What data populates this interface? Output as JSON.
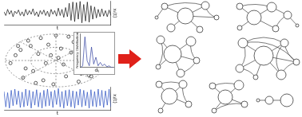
{
  "chart_data": [
    {
      "type": "line",
      "color": "#111111",
      "x_label": "t",
      "y_label": "xᵢ(t)",
      "tick_labels": false,
      "x": [
        1,
        2,
        3,
        4,
        5,
        6,
        7,
        8,
        9,
        10,
        11,
        12,
        13,
        14,
        15,
        16,
        17,
        18,
        19,
        20,
        21,
        22,
        23,
        24,
        25,
        26,
        27,
        28,
        29,
        30,
        31,
        32,
        33,
        34,
        35,
        36,
        37,
        38,
        39,
        40,
        41,
        42,
        43,
        44,
        45,
        46,
        47,
        48,
        49,
        50,
        51,
        52,
        53,
        54,
        55,
        56,
        57,
        58,
        59,
        60
      ],
      "values": [
        0.1,
        -0.2,
        0.3,
        -0.1,
        0.2,
        -0.3,
        0.15,
        -0.05,
        0.25,
        -0.2,
        0.1,
        -0.25,
        0.3,
        -0.15,
        0.2,
        -0.1,
        0.35,
        -0.2,
        0.1,
        -0.3,
        0.2,
        -0.1,
        0.25,
        -0.2,
        0.15,
        -0.3,
        0.3,
        -0.1,
        0.2,
        -0.25,
        0.4,
        -0.2,
        0.3,
        -0.35,
        0.45,
        -0.3,
        0.8,
        -0.6,
        0.9,
        -0.7,
        0.85,
        -0.5,
        0.95,
        -0.8,
        0.7,
        -0.65,
        0.9,
        -0.75,
        0.6,
        -0.5,
        0.5,
        -0.4,
        0.3,
        -0.3,
        0.35,
        -0.25,
        0.2,
        -0.3,
        0.25,
        -0.2
      ],
      "xlim": [
        1,
        60
      ],
      "ylim": [
        -1,
        1
      ]
    },
    {
      "type": "scatter",
      "color": "#333333",
      "marker": "open-circle",
      "grid": true,
      "tick_labels": false,
      "x": [
        0.05,
        -0.1,
        0.15,
        -0.2,
        0.3,
        -0.35,
        0.1,
        0.4,
        -0.45,
        0.55,
        -0.5,
        0.2,
        -0.6,
        0.65,
        -0.7,
        0.75,
        -0.25,
        0.35,
        -0.8,
        0.85,
        -0.05,
        0.45,
        -0.3,
        0.6,
        -0.65,
        0.9,
        -0.9,
        0.25,
        -0.15,
        0.7,
        -0.55,
        0.5,
        -0.4,
        0.8,
        0.0,
        -0.75
      ],
      "values": [
        0.1,
        0.2,
        -0.15,
        -0.1,
        0.3,
        0.25,
        0.45,
        -0.35,
        -0.4,
        0.2,
        0.55,
        -0.6,
        -0.3,
        -0.55,
        0.4,
        0.1,
        -0.75,
        0.7,
        0.2,
        -0.35,
        -0.9,
        -0.8,
        0.85,
        0.7,
        -0.65,
        0.05,
        -0.1,
        0.9,
        0.6,
        -0.6,
        0.75,
        -0.5,
        -0.85,
        0.5,
        0.95,
        0.55
      ],
      "xlim": [
        -1,
        1
      ],
      "ylim": [
        -1,
        1
      ],
      "xticks": [
        -1,
        -0.5,
        0,
        0.5,
        1
      ],
      "yticks": [
        -1,
        -0.5,
        0,
        0.5,
        1
      ]
    },
    {
      "type": "line",
      "color": "#2f3f9f",
      "x_label": "dᵢⱼ",
      "y_label": "Frequency Distribution",
      "tick_labels": false,
      "x": [
        0,
        0.02,
        0.04,
        0.06,
        0.08,
        0.1,
        0.12,
        0.14,
        0.16,
        0.18,
        0.2,
        0.22,
        0.24,
        0.26,
        0.28,
        0.3
      ],
      "values": [
        0,
        0.05,
        0.9,
        0.2,
        0.05,
        0.6,
        0.1,
        0.3,
        0.05,
        0.15,
        0.05,
        0.1,
        0.02,
        0.05,
        0,
        0
      ],
      "xlim": [
        0,
        0.3
      ],
      "ylim": [
        0,
        1
      ]
    },
    {
      "type": "line",
      "color": "#2a4fc0",
      "x_label": "t",
      "y_label": "xⱼ(t)",
      "tick_labels": false,
      "x": [
        1,
        2,
        3,
        4,
        5,
        6,
        7,
        8,
        9,
        10,
        11,
        12,
        13,
        14,
        15,
        16,
        17,
        18,
        19,
        20,
        21,
        22,
        23,
        24,
        25,
        26,
        27,
        28,
        29,
        30,
        31,
        32,
        33,
        34,
        35,
        36,
        37,
        38,
        39,
        40,
        41,
        42,
        43,
        44,
        45,
        46,
        47,
        48,
        49,
        50,
        51,
        52,
        53,
        54,
        55,
        56,
        57,
        58,
        59,
        60
      ],
      "values": [
        0.6,
        -0.7,
        0.5,
        -0.8,
        0.7,
        -0.6,
        0.8,
        -0.5,
        0.65,
        -0.75,
        0.55,
        -0.7,
        0.8,
        -0.6,
        0.7,
        -0.8,
        0.6,
        -0.55,
        0.75,
        -0.7,
        0.5,
        -0.8,
        0.7,
        -0.65,
        0.8,
        -0.6,
        0.6,
        -0.75,
        0.7,
        -0.5,
        0.85,
        -0.7,
        0.6,
        -0.8,
        0.7,
        -0.6,
        0.75,
        -0.7,
        0.65,
        -0.8,
        0.6,
        -0.55,
        0.8,
        -0.7,
        0.7,
        -0.6,
        0.55,
        -0.8,
        0.75,
        -0.65,
        0.6,
        -0.7,
        0.8,
        -0.6,
        0.7,
        -0.75,
        0.65,
        -0.55,
        0.8,
        -0.7
      ],
      "xlim": [
        1,
        60
      ],
      "ylim": [
        -1,
        1
      ]
    }
  ]
}
